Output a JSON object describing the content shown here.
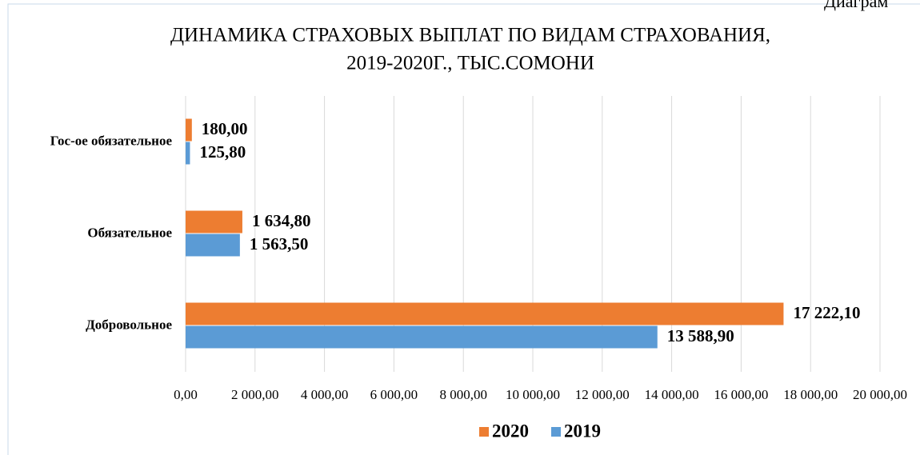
{
  "chart_data": {
    "type": "bar",
    "orientation": "horizontal",
    "title": "ДИНАМИКА СТРАХОВЫХ ВЫПЛАТ ПО ВИДАМ СТРАХОВАНИЯ,",
    "subtitle": "2019-2020Г.,  ТЫС.СОМОНИ",
    "annotation": "Диаграм",
    "categories": [
      "Гос-ое обязательное",
      "Обязательное",
      "Добровольное"
    ],
    "series": [
      {
        "name": "2020",
        "color": "#ED7D31",
        "values": [
          180,
          1634.8,
          17222.1
        ],
        "value_labels": [
          "180,00",
          "1 634,80",
          "17 222,10"
        ]
      },
      {
        "name": "2019",
        "color": "#5B9BD5",
        "values": [
          125.8,
          1563.5,
          13588.9
        ],
        "value_labels": [
          "125,80",
          "1 563,50",
          "13 588,90"
        ]
      }
    ],
    "xlim": [
      0,
      20000
    ],
    "xticks": [
      {
        "value": 0,
        "label": "0,00"
      },
      {
        "value": 2000,
        "label": "2 000,00"
      },
      {
        "value": 4000,
        "label": "4 000,00"
      },
      {
        "value": 6000,
        "label": "6 000,00"
      },
      {
        "value": 8000,
        "label": "8 000,00"
      },
      {
        "value": 10000,
        "label": "10 000,00"
      },
      {
        "value": 12000,
        "label": "12 000,00"
      },
      {
        "value": 14000,
        "label": "14 000,00"
      },
      {
        "value": 16000,
        "label": "16 000,00"
      },
      {
        "value": 18000,
        "label": "18 000,00"
      },
      {
        "value": 20000,
        "label": "20 000,00"
      }
    ],
    "grid": true,
    "legend": "bottom"
  }
}
